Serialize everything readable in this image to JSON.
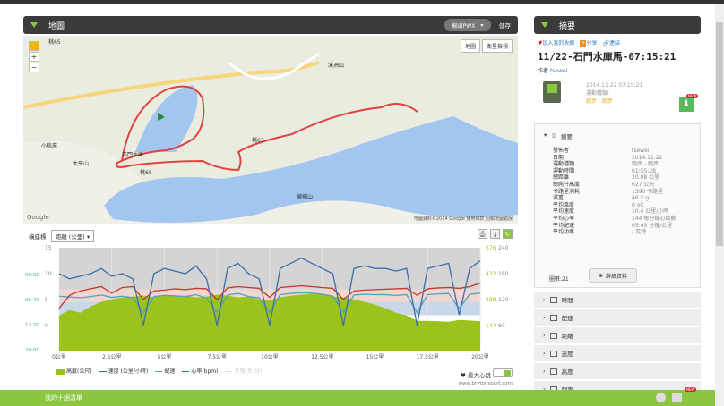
{
  "map_panel": {
    "title": "地圖",
    "export_label": "輸出PWX",
    "save_label": "儲存",
    "map_type_buttons": [
      "地圖",
      "衛星檢視"
    ],
    "labels": [
      "桃65",
      "桃63",
      "桃65",
      "石門水庫",
      "溪洲山",
      "槭樹山",
      "小烏來",
      "太平山"
    ],
    "footer": "地圖資料©2014 Google  使用條款  回報地圖錯誤",
    "google": "Google"
  },
  "chart": {
    "select_label": "橫座標:",
    "select_value": "距離 (公里)",
    "legend": [
      "高度(公尺)",
      "速度 (公里/小時)",
      "配速",
      "心率(bpm)",
      "步頻(步/分)"
    ],
    "max_hr_label": "最大心跳",
    "site": "www.brytonsport.com"
  },
  "summary": {
    "title": "摘要",
    "actions": [
      "加入我的收藏",
      "分享",
      "連結"
    ],
    "activity_title": "11/22-石門水庫馬-07:15:21",
    "author_label": "作者",
    "author": "tsewei",
    "datetime": "2014.11.22 07:15:21",
    "sport_label": "運動種類:",
    "sport": "跑步 - 跑步",
    "new_badge": "NEW",
    "section_title": "摘要",
    "stats": [
      [
        "發佈者",
        "tsewei"
      ],
      [
        "日期",
        "2014.11.22"
      ],
      [
        "運動種類",
        "跑步 - 跑步"
      ],
      [
        "運動時間",
        "01:55:28"
      ],
      [
        "總距離",
        "20.08 公里"
      ],
      [
        "總爬升高度",
        "627 公尺"
      ],
      [
        "卡路里消耗",
        "1390 卡路里"
      ],
      [
        "減重",
        "46.2 g"
      ],
      [
        "平均溫度",
        "0 oC"
      ],
      [
        "平均速度",
        "10.4 公里/小時"
      ],
      [
        "平均心率",
        "144 每分鐘心跳數"
      ],
      [
        "平均配速",
        "05:45 分鐘/公里"
      ],
      [
        "平均功率",
        "- 瓦特"
      ]
    ],
    "laps": "圈數:21",
    "detail_button": "詳細資料",
    "sections": [
      "時間",
      "配速",
      "距離",
      "速度",
      "高度",
      "頻率"
    ]
  },
  "bottom_bar": {
    "label": "我的十趟清單",
    "new_badge": "NEW"
  },
  "colors": {
    "accent": "#8cc63f",
    "header": "#3b3b3b",
    "speed": "#3d6ea8",
    "pace": "#4aa3c8",
    "hr": "#c0392b",
    "elevation": "#9cc21e"
  },
  "chart_data": {
    "type": "line",
    "xlabel": "距離 (公里)",
    "x_ticks": [
      "0公里",
      "2.5公里",
      "5公里",
      "7.5公里",
      "10公里",
      "12.5公里",
      "15公里",
      "17.5公里",
      "20公里"
    ],
    "xlim": [
      0,
      20
    ],
    "speed_axis": {
      "ticks": [
        "0",
        "5",
        "10",
        "15"
      ],
      "ylim": [
        -5,
        15
      ]
    },
    "pace_axis": {
      "ticks": [
        "20:00",
        "13:20",
        "06:40",
        "00:00"
      ]
    },
    "hr_axis": {
      "ticks": [
        "60",
        "120",
        "180",
        "240"
      ],
      "ylim": [
        0,
        240
      ]
    },
    "elevation_axis": {
      "ticks": [
        "144",
        "288",
        "432",
        "576"
      ],
      "ylim": [
        0,
        576
      ]
    },
    "x": [
      0,
      0.5,
      1,
      1.5,
      2,
      2.5,
      3,
      3.5,
      4,
      4.5,
      5,
      5.5,
      6,
      6.5,
      7,
      7.5,
      8,
      8.5,
      9,
      9.5,
      10,
      10.5,
      11,
      11.5,
      12,
      12.5,
      13,
      13.5,
      14,
      14.5,
      15,
      15.5,
      16,
      16.5,
      17,
      17.5,
      18,
      18.5,
      19,
      19.5,
      20
    ],
    "series": [
      {
        "name": "高度(公尺)",
        "type": "area",
        "values": [
          200,
          230,
          215,
          250,
          275,
          290,
          300,
          305,
          310,
          300,
          315,
          305,
          310,
          300,
          305,
          315,
          310,
          300,
          305,
          290,
          285,
          300,
          310,
          315,
          320,
          315,
          305,
          300,
          290,
          275,
          260,
          240,
          215,
          200,
          170,
          170,
          168,
          165,
          175,
          172,
          168
        ]
      },
      {
        "name": "速度 (公里/小時)",
        "values": [
          10,
          9,
          9.5,
          10,
          11,
          9.5,
          10,
          9,
          0,
          10,
          11,
          10.5,
          10,
          11.5,
          9,
          0,
          11,
          12,
          10,
          9,
          0,
          11,
          12,
          13,
          12,
          11,
          10,
          0,
          11,
          11.5,
          11,
          11,
          10.5,
          11,
          0,
          11,
          11.5,
          12,
          2,
          11,
          12.5
        ]
      },
      {
        "name": "配速",
        "values": [
          5.8,
          6,
          6.2,
          5.9,
          5.5,
          6.1,
          5.8,
          6.2,
          10,
          5.9,
          5.6,
          5.7,
          5.9,
          5.4,
          6.3,
          10,
          5.5,
          5.1,
          5.9,
          6.2,
          10,
          5.4,
          5.1,
          4.9,
          5,
          5.3,
          5.8,
          10,
          5.5,
          5.3,
          5.4,
          5.4,
          5.6,
          5.4,
          10,
          5.4,
          5.2,
          5.1,
          9,
          5.3,
          5
        ]
      },
      {
        "name": "心率(bpm)",
        "values": [
          100,
          130,
          140,
          145,
          150,
          135,
          148,
          150,
          120,
          140,
          142,
          145,
          143,
          146,
          145,
          120,
          147,
          150,
          148,
          146,
          125,
          148,
          150,
          152,
          150,
          148,
          146,
          120,
          140,
          142,
          143,
          144,
          145,
          146,
          130,
          145,
          147,
          148,
          146,
          150,
          158
        ]
      }
    ]
  }
}
